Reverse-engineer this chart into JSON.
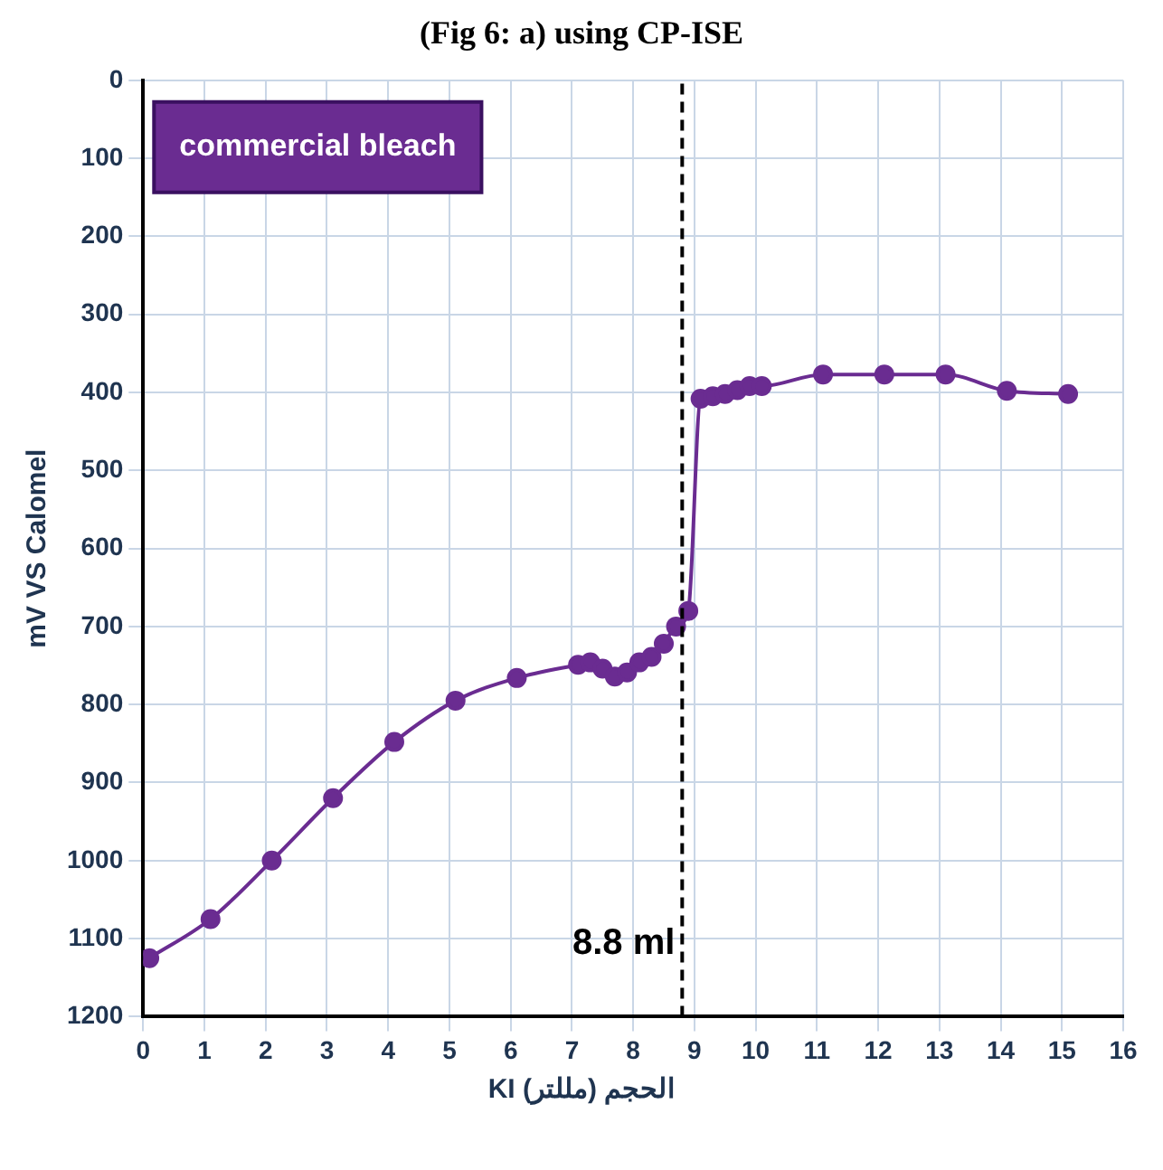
{
  "chart_data": {
    "type": "line",
    "title": "(Fig 6: a) using CP-ISE",
    "xlabel": "الحجم (مللتر) KI",
    "ylabel": "mV VS Calomel",
    "series": [
      {
        "name": "commercial bleach",
        "color": "#6a2c91",
        "x": [
          0.1,
          1.1,
          2.1,
          3.1,
          4.1,
          5.1,
          6.1,
          7.1,
          7.3,
          7.5,
          7.7,
          7.9,
          8.1,
          8.3,
          8.5,
          8.7,
          8.9,
          9.1,
          9.3,
          9.5,
          9.7,
          9.9,
          10.1,
          11.1,
          12.1,
          13.1,
          14.1,
          15.1
        ],
        "values": [
          1125,
          1075,
          1000,
          920,
          848,
          795,
          766,
          749,
          746,
          754,
          764,
          759,
          746,
          739,
          722,
          700,
          680,
          408,
          405,
          402,
          397,
          392,
          392,
          377,
          377,
          377,
          398,
          402
        ]
      }
    ],
    "xlim": [
      0,
      16
    ],
    "xticks": [
      0,
      1,
      2,
      3,
      4,
      5,
      6,
      7,
      8,
      9,
      10,
      11,
      12,
      13,
      14,
      15,
      16
    ],
    "ylim": [
      1200,
      0
    ],
    "yticks": [
      0,
      100,
      200,
      300,
      400,
      500,
      600,
      700,
      800,
      900,
      1000,
      1100,
      1200
    ],
    "ref_lines": [
      {
        "axis": "x",
        "value": 8.8,
        "label": "8.8 ml",
        "color": "#000000",
        "line_style": "dashed"
      }
    ],
    "grid": true,
    "legend": "top left",
    "marker": "circle",
    "line_style": "solid"
  }
}
